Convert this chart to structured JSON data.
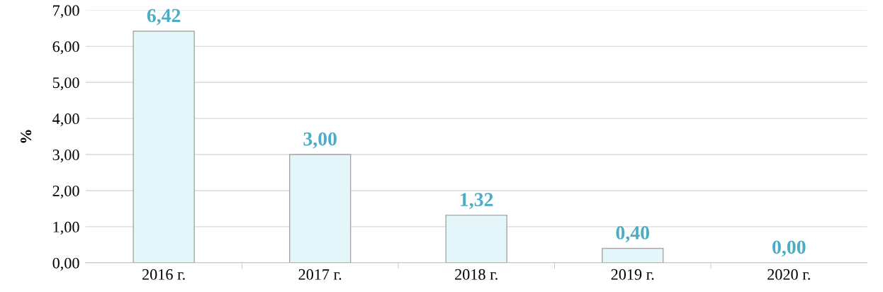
{
  "chart_data": {
    "type": "bar",
    "ylabel": "%",
    "categories": [
      "2016 г.",
      "2017 г.",
      "2018 г.",
      "2019 г.",
      "2020 г."
    ],
    "values": [
      6.42,
      3.0,
      1.32,
      0.4,
      0.0
    ],
    "value_labels": [
      "6,42",
      "3,00",
      "1,32",
      "0,40",
      "0,00"
    ],
    "color": "#e4f6f9",
    "ylim": [
      0,
      7
    ],
    "yticks": [
      {
        "value": 0,
        "label": "0,00"
      },
      {
        "value": 1,
        "label": "1,00"
      },
      {
        "value": 2,
        "label": "2,00"
      },
      {
        "value": 3,
        "label": "3,00"
      },
      {
        "value": 4,
        "label": "4,00"
      },
      {
        "value": 5,
        "label": "5,00"
      },
      {
        "value": 6,
        "label": "6,00"
      },
      {
        "value": 7,
        "label": "7,00"
      }
    ],
    "grid": "y",
    "legend": false
  }
}
